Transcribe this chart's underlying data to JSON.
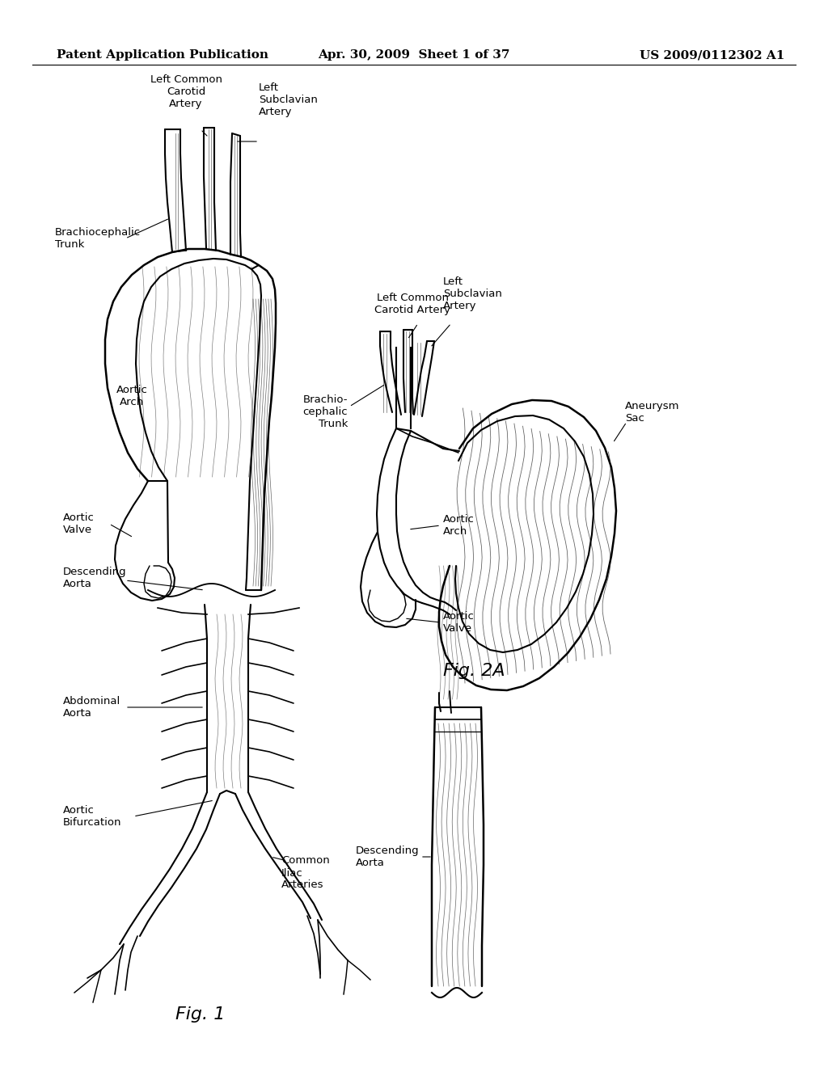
{
  "bg_color": "#ffffff",
  "header_left": "Patent Application Publication",
  "header_center": "Apr. 30, 2009  Sheet 1 of 37",
  "header_right": "US 2009/0112302 A1",
  "header_fontsize": 11,
  "fig1_label": "Fig. 1",
  "fig2a_label": "Fig. 2A",
  "line_color": "#000000",
  "line_width": 1.5,
  "annotation_fontsize": 9.5
}
